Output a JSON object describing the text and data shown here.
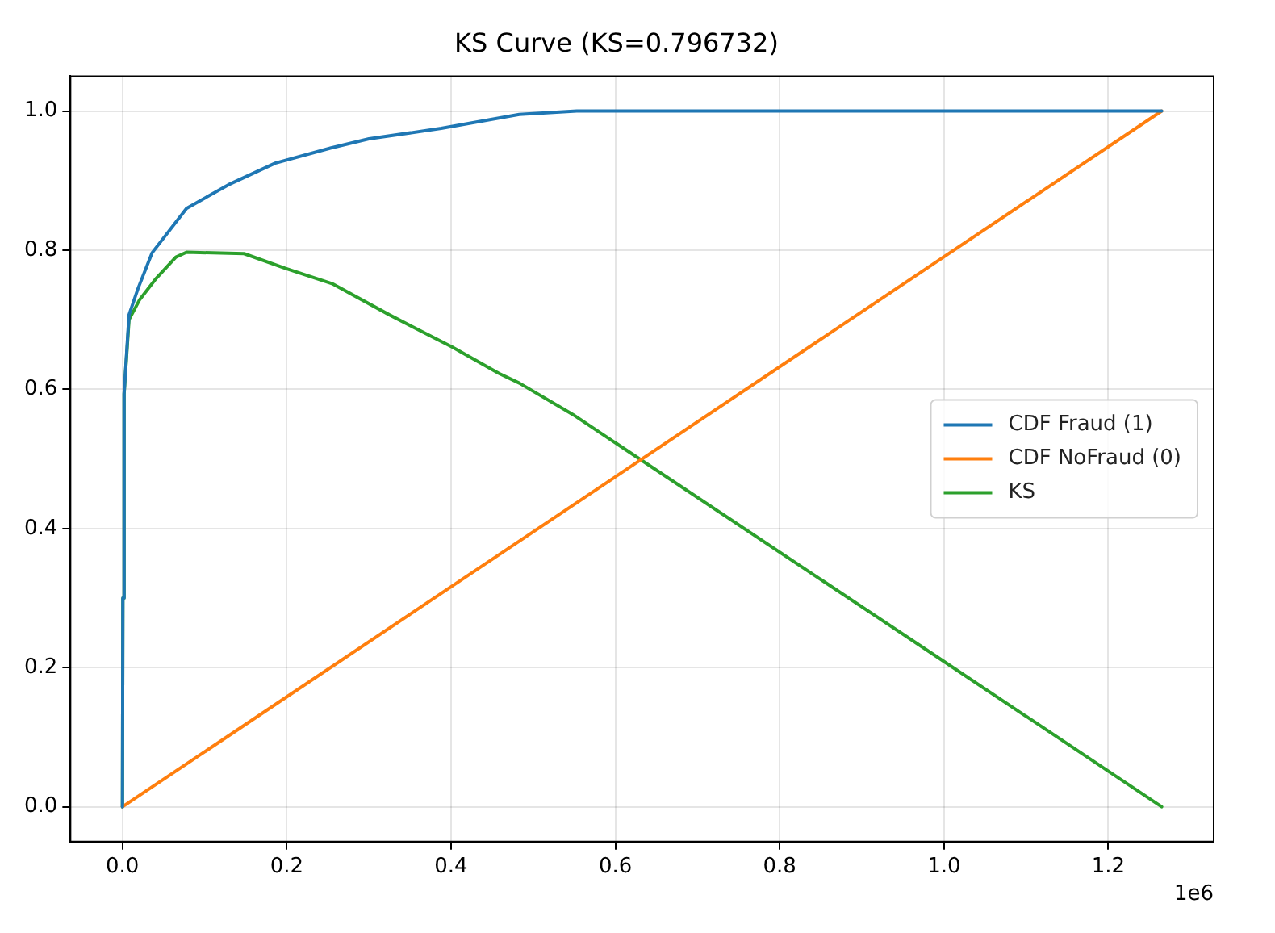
{
  "chart_data": {
    "type": "line",
    "title": "KS Curve (KS=0.796732)",
    "xlim": [
      -0.06325,
      1.32825
    ],
    "xticks": [
      {
        "value": 0,
        "label": "0.0"
      },
      {
        "value": 0.2,
        "label": "0.2"
      },
      {
        "value": 0.4,
        "label": "0.4"
      },
      {
        "value": 0.6,
        "label": "0.6"
      },
      {
        "value": 0.8,
        "label": "0.8"
      },
      {
        "value": 1,
        "label": "1.0"
      },
      {
        "value": 1.2,
        "label": "1.2"
      }
    ],
    "ylim": [
      -0.05,
      1.05
    ],
    "yticks": [
      {
        "value": 0,
        "label": "0.0"
      },
      {
        "value": 0.2,
        "label": "0.2"
      },
      {
        "value": 0.4,
        "label": "0.4"
      },
      {
        "value": 0.6,
        "label": "0.6"
      },
      {
        "value": 0.8,
        "label": "0.8"
      },
      {
        "value": 1,
        "label": "1.0"
      }
    ],
    "annotations": [
      "1e6"
    ],
    "grid": true,
    "legend": "right",
    "series": [
      {
        "name": "CDF Fraud (1)",
        "color": "#1f77b4",
        "x": [
          0,
          0.0005,
          0.002,
          0.008,
          0.019,
          0.036,
          0.078,
          0.129,
          0.186,
          0.254,
          0.3,
          0.388,
          0.483,
          0.553,
          1.265
        ],
        "values": [
          0,
          0.3,
          0.594,
          0.707,
          0.745,
          0.796,
          0.86,
          0.894,
          0.925,
          0.947,
          0.96,
          0.975,
          0.995,
          1.0,
          1.0
        ]
      },
      {
        "name": "CDF NoFraud (0)",
        "color": "#ff7f0e",
        "x": [
          0,
          1.265
        ],
        "values": [
          0,
          1.0
        ]
      },
      {
        "name": "KS",
        "color": "#2ca02c",
        "x": [
          0,
          0.0005,
          0.002,
          0.008,
          0.021,
          0.04,
          0.065,
          0.078,
          0.148,
          0.198,
          0.255,
          0.325,
          0.401,
          0.458,
          0.483,
          0.548,
          0.991,
          1.265
        ],
        "values": [
          0,
          0.3,
          0.593,
          0.7,
          0.729,
          0.758,
          0.79,
          0.797,
          0.795,
          0.774,
          0.752,
          0.707,
          0.661,
          0.623,
          0.609,
          0.564,
          0.216,
          0
        ]
      }
    ]
  }
}
